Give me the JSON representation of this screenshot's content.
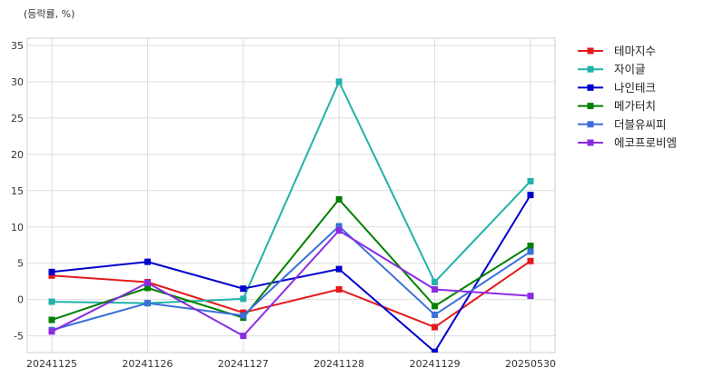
{
  "chart_data": {
    "type": "line",
    "unit_label": "(등락률, %)",
    "categories": [
      "20241125",
      "20241126",
      "20241127",
      "20241128",
      "20241129",
      "20250530"
    ],
    "ylim": [
      -7.3,
      36
    ],
    "yticks": [
      -5,
      0,
      5,
      10,
      15,
      20,
      25,
      30,
      35
    ],
    "grid": true,
    "legend_position": "outside-right",
    "series": [
      {
        "name": "테마지수",
        "color": "#e31a1c",
        "values": [
          3.3,
          2.4,
          -1.8,
          1.4,
          -3.8,
          5.3
        ]
      },
      {
        "name": "자이글",
        "color": "#20b2aa",
        "values": [
          -0.3,
          -0.5,
          0.1,
          30.0,
          2.4,
          16.3
        ]
      },
      {
        "name": "나인테크",
        "color": "#0000cd",
        "values": [
          3.8,
          5.2,
          1.5,
          4.2,
          -7.2,
          14.4
        ]
      },
      {
        "name": "메가터치",
        "color": "#008000",
        "values": [
          -2.8,
          1.6,
          -2.5,
          13.8,
          -0.9,
          7.4
        ]
      },
      {
        "name": "더블유씨피",
        "color": "#3a6fd8",
        "values": [
          -4.2,
          -0.5,
          -2.2,
          10.1,
          -2.1,
          6.6
        ]
      },
      {
        "name": "에코프로비엠",
        "color": "#8a2be2",
        "values": [
          -4.4,
          2.3,
          -5.0,
          9.5,
          1.4,
          0.5
        ]
      }
    ]
  }
}
